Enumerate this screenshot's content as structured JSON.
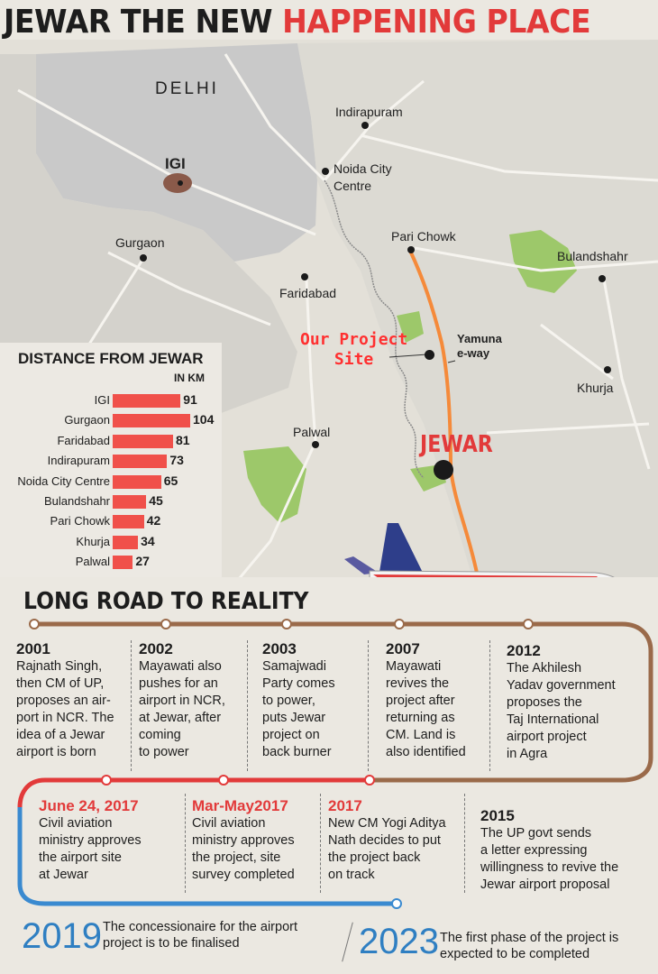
{
  "headline": {
    "part1": "JEWAR THE NEW ",
    "part2": "HAPPENING PLACE"
  },
  "colors": {
    "accent_red": "#e23a3a",
    "bar_red": "#f0504a",
    "road_orange": "#f58a3a",
    "timeline_brown": "#9a6a4a",
    "timeline_red": "#e23a3a",
    "timeline_blue": "#3a8ad0"
  },
  "map": {
    "places": {
      "delhi": "DELHI",
      "igi": "IGI",
      "indirapuram": "Indirapuram",
      "noida_city_centre": "Noida City\nCentre",
      "gurgaon": "Gurgaon",
      "pari_chowk": "Pari Chowk",
      "bulandshahr": "Bulandshahr",
      "faridabad": "Faridabad",
      "yamuna_eway": "Yamuna\ne-way",
      "khurja": "Khurja",
      "palwal": "Palwal",
      "jewar": "JEWAR"
    },
    "project_site_label": "Our Project\nSite"
  },
  "distance": {
    "title": "DISTANCE FROM JEWAR",
    "unit": "IN KM",
    "rows": [
      {
        "label": "IGI",
        "value": 91
      },
      {
        "label": "Gurgaon",
        "value": 104
      },
      {
        "label": "Faridabad",
        "value": 81
      },
      {
        "label": "Indirapuram",
        "value": 73
      },
      {
        "label": "Noida City Centre",
        "value": 65
      },
      {
        "label": "Bulandshahr",
        "value": 45
      },
      {
        "label": "Pari Chowk",
        "value": 42
      },
      {
        "label": "Khurja",
        "value": 34
      },
      {
        "label": "Palwal",
        "value": 27
      }
    ]
  },
  "timeline": {
    "title": "LONG ROAD TO REALITY",
    "items": [
      {
        "year": "2001",
        "text": "Rajnath Singh,\nthen CM of UP,\nproposes an air-\nport in NCR. The\nidea of a Jewar\nairport is born"
      },
      {
        "year": "2002",
        "text": "Mayawati also\npushes for an\nairport in NCR,\nat Jewar, after\ncoming\nto power"
      },
      {
        "year": "2003",
        "text": "Samajwadi\nParty comes\nto power,\nputs Jewar\nproject on\nback burner"
      },
      {
        "year": "2007",
        "text": "Mayawati\nrevives the\nproject after\nreturning as\nCM. Land is\nalso identified"
      },
      {
        "year": "2012",
        "text": "The Akhilesh\nYadav government\nproposes the\nTaj International\nairport project\nin Agra"
      },
      {
        "year": "June 24, 2017",
        "text": "Civil aviation\nministry approves\nthe airport site\nat Jewar"
      },
      {
        "year": "Mar-May2017",
        "text": "Civil aviation\nministry approves\nthe project, site\nsurvey completed"
      },
      {
        "year": "2017",
        "text": "New CM Yogi Aditya\nNath decides to put\nthe project back\non track"
      },
      {
        "year": "2015",
        "text": "The UP govt sends\na letter expressing\nwillingness to revive the\nJewar airport proposal"
      }
    ],
    "future": [
      {
        "year": "2019",
        "text": "The concessionaire for the airport\nproject is to be finalised"
      },
      {
        "year": "2023",
        "text": "The first phase of the project is\nexpected to be completed"
      }
    ]
  }
}
